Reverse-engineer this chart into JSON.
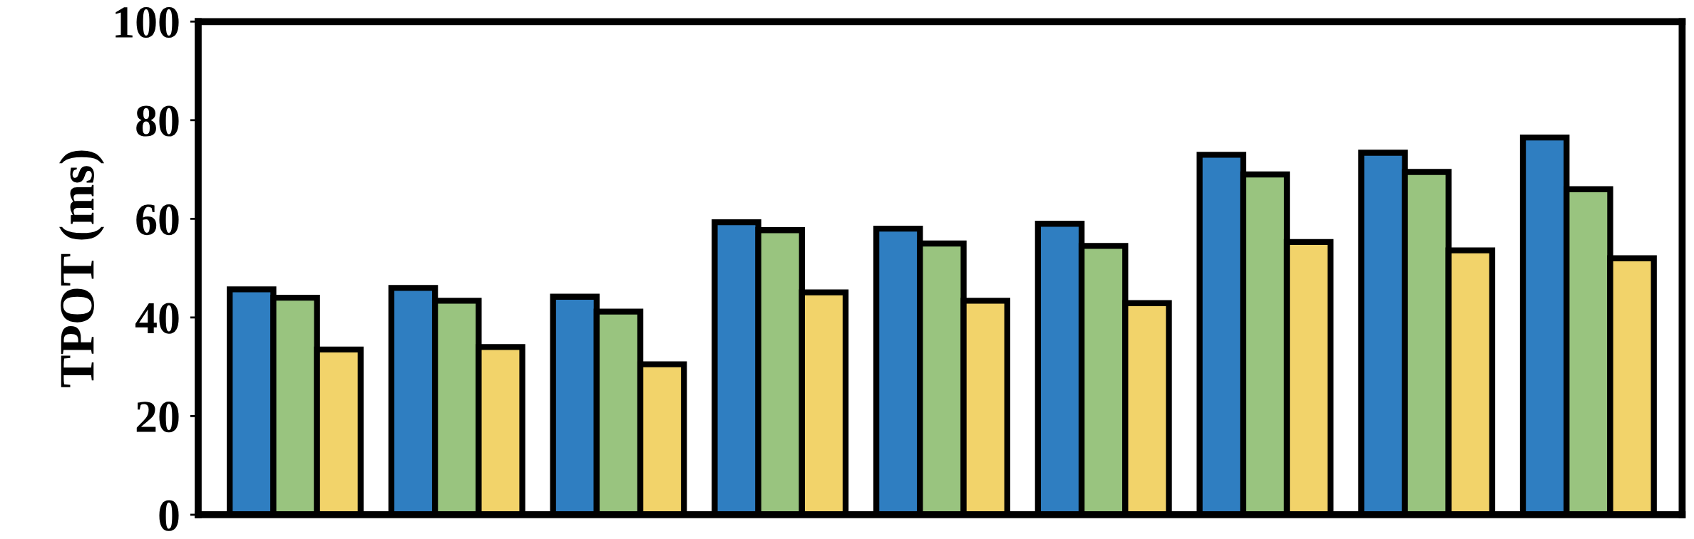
{
  "chart_data": {
    "type": "bar",
    "ylabel": "TPOT (ms)",
    "categories": [
      null,
      null,
      null,
      null,
      null,
      null,
      null,
      null,
      null
    ],
    "series": [
      {
        "color": "#2f7ec1",
        "values": [
          45.7,
          46,
          44.2,
          59.3,
          58,
          59,
          73,
          73.4,
          76.5
        ]
      },
      {
        "color": "#99c47f",
        "values": [
          44,
          43.4,
          41.2,
          57.7,
          55,
          54.5,
          69,
          69.5,
          66
        ]
      },
      {
        "color": "#f2d36a",
        "values": [
          33.5,
          34,
          30.5,
          45.1,
          43.4,
          42.9,
          55.3,
          53.6,
          52
        ]
      }
    ],
    "ylim": [
      0,
      100
    ],
    "yticks": [
      0,
      20,
      40,
      60,
      80,
      100
    ],
    "grid": false,
    "legend": false
  }
}
